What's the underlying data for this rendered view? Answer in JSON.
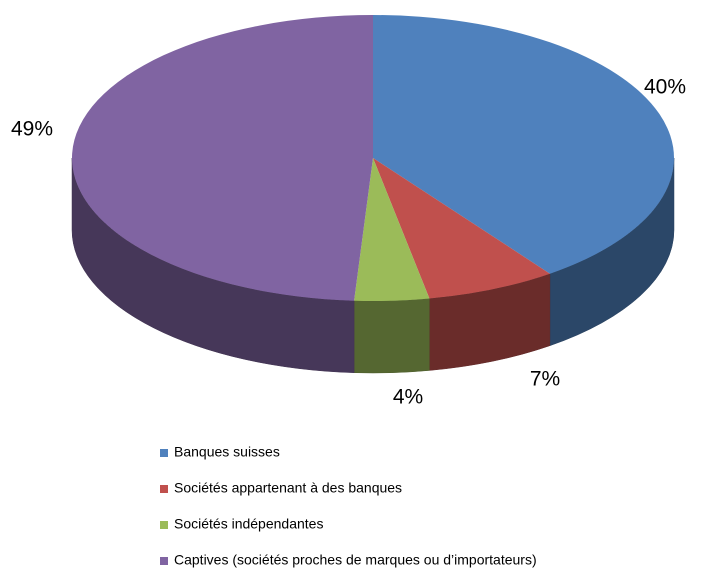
{
  "chart_data": {
    "type": "pie",
    "categories": [
      "Banques suisses",
      "Sociétés appartenant à des banques",
      "Sociétés indépendantes",
      "Captives (sociétés proches de marques ou d’importateurs)"
    ],
    "values": [
      40,
      7,
      4,
      49
    ],
    "value_labels": [
      "40%",
      "7%",
      "4%",
      "49%"
    ],
    "colors": [
      "#4f81bd",
      "#c0504d",
      "#9bbb59",
      "#8064a2"
    ],
    "legend": "bottom"
  }
}
